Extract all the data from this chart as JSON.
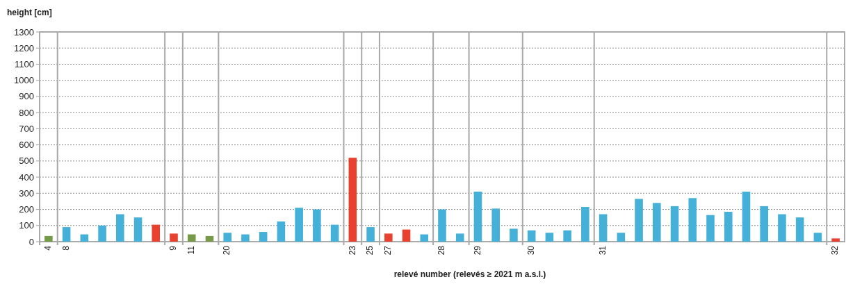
{
  "chart_data": {
    "type": "bar",
    "ylabel": "height [cm]",
    "xlabel": "relevé number (relevés ≥ 2021 m a.s.l.)",
    "categories": [
      "4",
      "8",
      null,
      null,
      null,
      null,
      null,
      "9",
      "11",
      null,
      "20",
      null,
      null,
      null,
      null,
      null,
      null,
      "23",
      "25",
      "27",
      null,
      null,
      "28",
      null,
      "29",
      null,
      null,
      "30",
      null,
      null,
      null,
      "31",
      null,
      null,
      null,
      null,
      null,
      null,
      null,
      null,
      null,
      null,
      null,
      null,
      "32"
    ],
    "values": [
      35,
      90,
      45,
      100,
      170,
      150,
      105,
      50,
      45,
      35,
      55,
      45,
      60,
      125,
      210,
      200,
      105,
      520,
      90,
      50,
      75,
      45,
      200,
      50,
      310,
      205,
      80,
      70,
      55,
      70,
      215,
      170,
      55,
      265,
      240,
      220,
      270,
      165,
      185,
      310,
      220,
      170,
      150,
      55,
      20
    ],
    "colors": [
      "#77994a",
      "#45b0d8",
      "#45b0d8",
      "#45b0d8",
      "#45b0d8",
      "#45b0d8",
      "#e8412f",
      "#e8412f",
      "#77994a",
      "#77994a",
      "#45b0d8",
      "#45b0d8",
      "#45b0d8",
      "#45b0d8",
      "#45b0d8",
      "#45b0d8",
      "#45b0d8",
      "#e8412f",
      "#45b0d8",
      "#e8412f",
      "#e8412f",
      "#45b0d8",
      "#45b0d8",
      "#45b0d8",
      "#45b0d8",
      "#45b0d8",
      "#45b0d8",
      "#45b0d8",
      "#45b0d8",
      "#45b0d8",
      "#45b0d8",
      "#45b0d8",
      "#45b0d8",
      "#45b0d8",
      "#45b0d8",
      "#45b0d8",
      "#45b0d8",
      "#45b0d8",
      "#45b0d8",
      "#45b0d8",
      "#45b0d8",
      "#45b0d8",
      "#45b0d8",
      "#45b0d8",
      "#e8412f"
    ],
    "ylim": [
      0,
      1300
    ],
    "yticks": [
      0,
      100,
      200,
      300,
      400,
      500,
      600,
      700,
      800,
      900,
      1000,
      1100,
      1200,
      1300
    ],
    "grid": true
  }
}
